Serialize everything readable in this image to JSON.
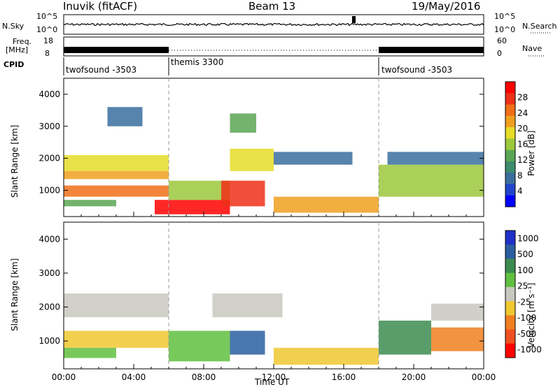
{
  "header": {
    "station": "Inuvik (fitACF)",
    "beam": "Beam 13",
    "date": "19/May/2016"
  },
  "panels": {
    "nsky_label": "N.Sky",
    "nsearch_label": "N.Search",
    "nsky_ticks": [
      "10^5",
      "10^0"
    ],
    "nsearch_ticks": [
      "10^5",
      "10^0"
    ],
    "freq_label_top": "Freq.",
    "freq_label_unit": "[MHz]",
    "freq_ticks": [
      "18",
      "8"
    ],
    "nave_label": "Nave",
    "nave_ticks": [
      "60",
      "0"
    ],
    "cpid_label": "CPID"
  },
  "cpid_segments": [
    {
      "label": "twofsound -3503",
      "start_hour": 0,
      "end_hour": 6
    },
    {
      "label": "themis 3300",
      "start_hour": 6,
      "end_hour": 18
    },
    {
      "label": "twofsound -3503",
      "start_hour": 18,
      "end_hour": 24
    }
  ],
  "chart_data": [
    {
      "type": "heatmap",
      "name": "power",
      "ylabel": "Slant Range [km]",
      "xlim": [
        0,
        24
      ],
      "ylim": [
        180,
        4500
      ],
      "yticks": [
        1000,
        2000,
        3000,
        4000
      ],
      "colorbar": {
        "label": "Power [dB]",
        "range": [
          0,
          32
        ],
        "ticks": [
          4,
          8,
          12,
          16,
          20,
          24,
          28
        ],
        "colors": [
          "#0000ff",
          "#2244cc",
          "#3a6e9e",
          "#3c8c6c",
          "#5aa654",
          "#9cc83c",
          "#e6dc28",
          "#f0a020",
          "#f07018",
          "#ee3018",
          "#ff0000"
        ]
      },
      "scatter_bands": [
        {
          "start_hour": 0.0,
          "end_hour": 6.0,
          "range_km": [
            1600,
            2100
          ],
          "power_db": 18
        },
        {
          "start_hour": 0.0,
          "end_hour": 6.0,
          "range_km": [
            1350,
            1600
          ],
          "power_db": 22
        },
        {
          "start_hour": 0.0,
          "end_hour": 6.0,
          "range_km": [
            800,
            1150
          ],
          "power_db": 26
        },
        {
          "start_hour": 0.0,
          "end_hour": 3.0,
          "range_km": [
            500,
            700
          ],
          "power_db": 12
        },
        {
          "start_hour": 2.5,
          "end_hour": 4.5,
          "range_km": [
            3000,
            3600
          ],
          "power_db": 8
        },
        {
          "start_hour": 5.2,
          "end_hour": 9.5,
          "range_km": [
            250,
            700
          ],
          "power_db": 30
        },
        {
          "start_hour": 6.0,
          "end_hour": 9.5,
          "range_km": [
            700,
            1300
          ],
          "power_db": 16
        },
        {
          "start_hour": 9.0,
          "end_hour": 11.5,
          "range_km": [
            500,
            1300
          ],
          "power_db": 28
        },
        {
          "start_hour": 9.5,
          "end_hour": 12.0,
          "range_km": [
            1600,
            2300
          ],
          "power_db": 20
        },
        {
          "start_hour": 9.5,
          "end_hour": 11.0,
          "range_km": [
            2800,
            3400
          ],
          "power_db": 14
        },
        {
          "start_hour": 12.0,
          "end_hour": 18.0,
          "range_km": [
            300,
            800
          ],
          "power_db": 22
        },
        {
          "start_hour": 12.0,
          "end_hour": 16.5,
          "range_km": [
            1800,
            2200
          ],
          "power_db": 8
        },
        {
          "start_hour": 18.0,
          "end_hour": 24.0,
          "range_km": [
            800,
            1800
          ],
          "power_db": 16
        },
        {
          "start_hour": 18.5,
          "end_hour": 24.0,
          "range_km": [
            1800,
            2200
          ],
          "power_db": 8
        }
      ]
    },
    {
      "type": "heatmap",
      "name": "velocity",
      "ylabel": "Slant Range [km]",
      "xlabel": "Time UT",
      "xlim": [
        0,
        24
      ],
      "ylim": [
        180,
        4500
      ],
      "yticks": [
        1000,
        2000,
        3000,
        4000
      ],
      "xticks": [
        "00:00",
        "04:00",
        "08:00",
        "12:00",
        "16:00",
        "20:00",
        "00:00"
      ],
      "colorbar": {
        "label": "Velocity [m s⁻¹]",
        "range": [
          -1200,
          1200
        ],
        "ticks": [
          1000,
          500,
          100,
          25,
          -25,
          -100,
          -500,
          -1000
        ],
        "colors": [
          "#2030c8",
          "#2a5ea0",
          "#3c8c50",
          "#60c040",
          "#c8c8c0",
          "#f0c830",
          "#f08020",
          "#f05020",
          "#ff0000"
        ]
      },
      "scatter_bands": [
        {
          "start_hour": 0.0,
          "end_hour": 6.0,
          "range_km": [
            1700,
            2400
          ],
          "velocity": 0
        },
        {
          "start_hour": 0.0,
          "end_hour": 6.0,
          "range_km": [
            800,
            1300
          ],
          "velocity": -200
        },
        {
          "start_hour": 0.0,
          "end_hour": 3.0,
          "range_km": [
            500,
            800
          ],
          "velocity": 150
        },
        {
          "start_hour": 6.0,
          "end_hour": 9.5,
          "range_km": [
            400,
            1300
          ],
          "velocity": 300
        },
        {
          "start_hour": 8.5,
          "end_hour": 12.5,
          "range_km": [
            1700,
            2400
          ],
          "velocity": 0
        },
        {
          "start_hour": 9.5,
          "end_hour": 11.5,
          "range_km": [
            600,
            1300
          ],
          "velocity": 800
        },
        {
          "start_hour": 12.0,
          "end_hour": 18.0,
          "range_km": [
            300,
            800
          ],
          "velocity": -400
        },
        {
          "start_hour": 18.0,
          "end_hour": 21.0,
          "range_km": [
            600,
            1600
          ],
          "velocity": 600
        },
        {
          "start_hour": 21.0,
          "end_hour": 24.0,
          "range_km": [
            700,
            1400
          ],
          "velocity": -600
        },
        {
          "start_hour": 21.0,
          "end_hour": 24.0,
          "range_km": [
            1600,
            2100
          ],
          "velocity": 0
        }
      ]
    }
  ]
}
